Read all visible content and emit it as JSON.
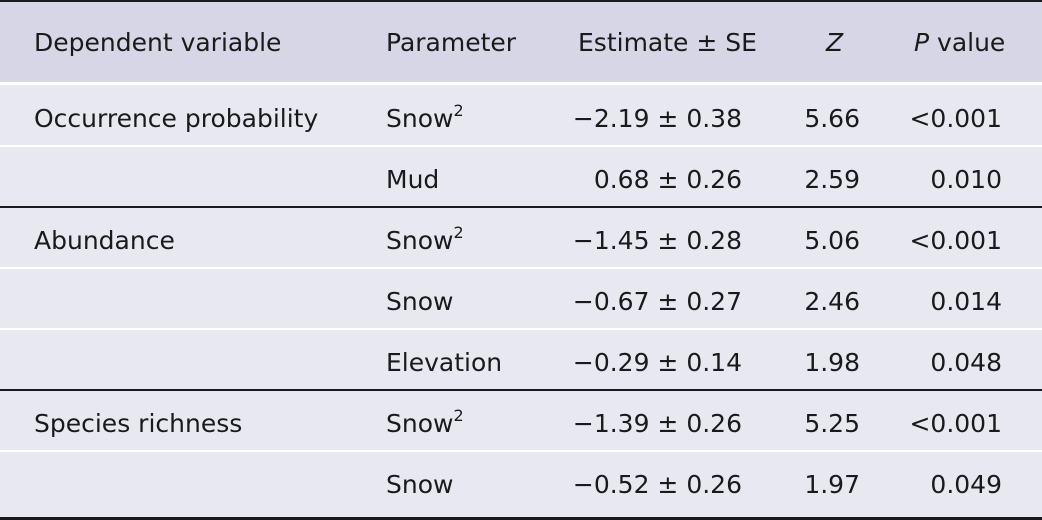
{
  "headers": {
    "dependent_variable": "Dependent variable",
    "parameter": "Parameter",
    "estimate": "Estimate ± SE",
    "z": "Z",
    "p_italic": "P",
    "p_rest": " value"
  },
  "rows": [
    {
      "dependent": "Occurrence probability",
      "parameter": "Snow",
      "sup": "2",
      "estimate": "−2.19 ± 0.38",
      "z": "5.66",
      "p": "<0.001"
    },
    {
      "dependent": "",
      "parameter": "Mud",
      "sup": "",
      "estimate": "0.68 ± 0.26",
      "z": "2.59",
      "p": "0.010"
    },
    {
      "dependent": "Abundance",
      "parameter": "Snow",
      "sup": "2",
      "estimate": "−1.45 ± 0.28",
      "z": "5.06",
      "p": "<0.001"
    },
    {
      "dependent": "",
      "parameter": "Snow",
      "sup": "",
      "estimate": "−0.67 ± 0.27",
      "z": "2.46",
      "p": "0.014"
    },
    {
      "dependent": "",
      "parameter": "Elevation",
      "sup": "",
      "estimate": "−0.29 ± 0.14",
      "z": "1.98",
      "p": "0.048"
    },
    {
      "dependent": "Species richness",
      "parameter": "Snow",
      "sup": "2",
      "estimate": "−1.39 ± 0.26",
      "z": "5.25",
      "p": "<0.001"
    },
    {
      "dependent": "",
      "parameter": "Snow",
      "sup": "",
      "estimate": "−0.52 ± 0.26",
      "z": "1.97",
      "p": "0.049"
    }
  ]
}
